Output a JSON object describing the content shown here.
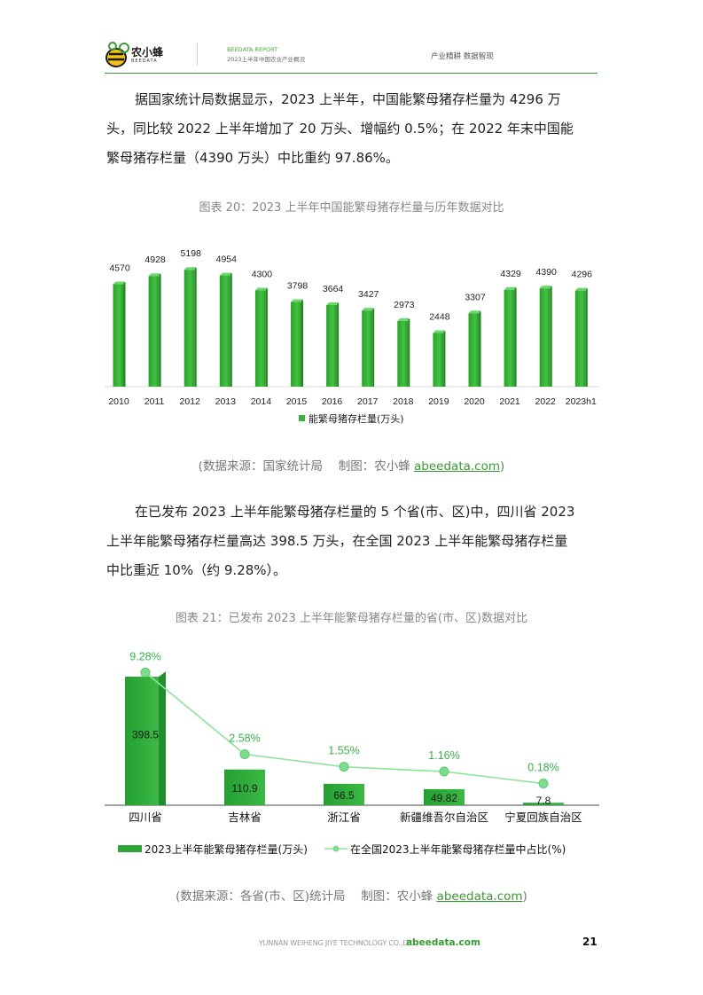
{
  "header": {
    "logo_text": "农小蜂",
    "logo_sub": "BEEDATA",
    "report_label": "BEEDATA REPORT",
    "report_title": "2023上半年中国农业产业概况",
    "slogan": "产业精耕 数据智现"
  },
  "paragraph1": [
    "据国家统计局数据显示，2023 上半年，中国能繁母猪存栏量为 4296 万",
    "头，同比较 2022 上半年增加了 20 万头、增幅约 0.5%；在 2022 年末中国能",
    "繁母猪存栏量（4390 万头）中比重约 97.86%。"
  ],
  "caption1": "图表 20：2023 上半年中国能繁母猪存栏量与历年数据对比",
  "source1": {
    "prefix": "(数据来源：国家统计局　 制图：农小蜂 ",
    "link": "abeedata.com",
    "suffix": ")"
  },
  "paragraph2": [
    "在已发布 2023 上半年能繁母猪存栏量的 5 个省(市、区)中，四川省 2023",
    "上半年能繁母猪存栏量高达 398.5 万头，在全国 2023 上半年能繁母猪存栏量",
    "中比重近 10%（约 9.28%）。"
  ],
  "caption2": "图表 21：已发布 2023 上半年能繁母猪存栏量的省(市、区)数据对比",
  "source2": {
    "prefix": "(数据来源：各省(市、区)统计局　 制图：农小蜂 ",
    "link": "abeedata.com",
    "suffix": ")"
  },
  "chart_data": [
    {
      "type": "bar",
      "categories": [
        "2010",
        "2011",
        "2012",
        "2013",
        "2014",
        "2015",
        "2016",
        "2017",
        "2018",
        "2019",
        "2020",
        "2021",
        "2022",
        "2023h1"
      ],
      "values": [
        4570,
        4928,
        5198,
        4954,
        4300,
        3798,
        3664,
        3427,
        2973,
        2448,
        3307,
        4329,
        4390,
        4296
      ],
      "series": [
        {
          "name": "能繁母猪存栏量(万头)",
          "values": [
            4570,
            4928,
            5198,
            4954,
            4300,
            3798,
            3664,
            3427,
            2973,
            2448,
            3307,
            4329,
            4390,
            4296
          ]
        }
      ],
      "ylim": [
        0,
        5400
      ],
      "legend": "bottom",
      "grid": false,
      "color": "#3bb33b"
    },
    {
      "type": "bar",
      "categories": [
        "四川省",
        "吉林省",
        "浙江省",
        "新疆维吾尔自治区",
        "宁夏回族自治区"
      ],
      "series": [
        {
          "name": "2023上半年能繁母猪存栏量(万头)",
          "type": "bar",
          "values": [
            398.5,
            110.9,
            66.5,
            49.82,
            7.8
          ],
          "labels": [
            "398.5",
            "110.9",
            "66.5",
            "49.82",
            "7.8"
          ]
        },
        {
          "name": "在全国2023上半年能繁母猪存栏量中占比(%)",
          "type": "line",
          "values": [
            9.28,
            2.58,
            1.55,
            1.16,
            0.18
          ],
          "labels": [
            "9.28%",
            "2.58%",
            "1.55%",
            "1.16%",
            "0.18%"
          ]
        }
      ],
      "ylim": [
        0,
        410
      ],
      "ylim2": [
        0,
        9.3
      ],
      "legend": "bottom",
      "grid": false,
      "bar_color": "#2fa53a",
      "line_color": "#8ee39a"
    }
  ],
  "footer": {
    "company": "YUNNAN WEIHENG JIYE TECHNOLOGY CO.,LTD.",
    "site": "abeedata.com",
    "page": "21"
  }
}
